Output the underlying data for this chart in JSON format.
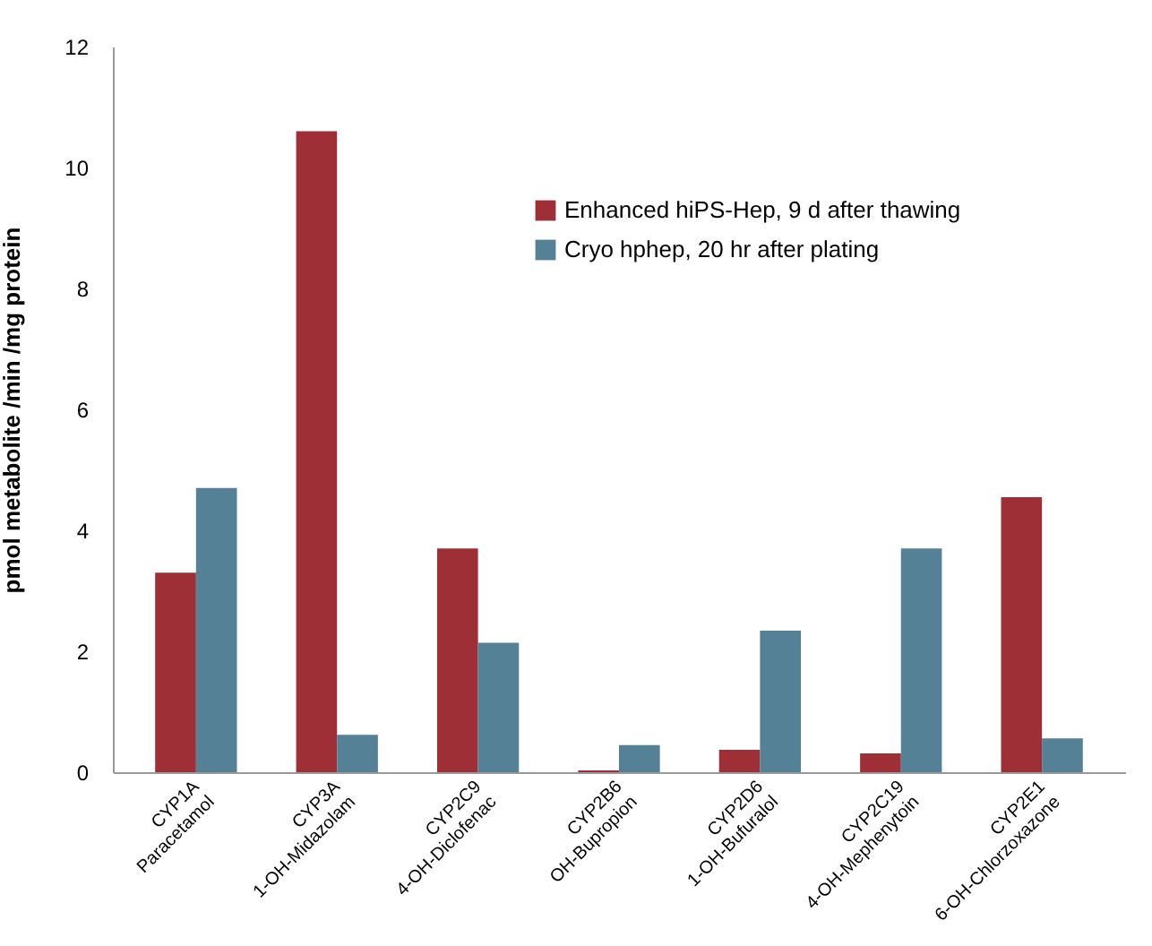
{
  "chart_data": {
    "type": "bar",
    "ylabel": "pmol metabolite /min /mg protein",
    "categories": [
      "CYP1A\nParacetamol",
      "CYP3A\n1-OH-Midazolam",
      "CYP2C9\n4-OH-Diclofenac",
      "CYP2B6\nOH-Bupropion",
      "CYP2D6\n1-OH-Bufuralol",
      "CYP2C19\n4-OH-Mephenytoin",
      "CYP2E1\n6-OH-Chlorzoxazone"
    ],
    "series": [
      {
        "name": "Enhanced hiPS-Hep, 9 d after thawing",
        "color": "#9e2f37",
        "values": [
          3.3,
          10.6,
          3.7,
          0.03,
          0.37,
          0.31,
          4.55
        ]
      },
      {
        "name": "Cryo hphep, 20 hr after plating",
        "color": "#548196",
        "values": [
          4.7,
          0.62,
          2.14,
          0.45,
          2.34,
          3.7,
          0.56
        ]
      }
    ],
    "ylim": [
      0,
      12
    ],
    "yticks": [
      0,
      2,
      4,
      6,
      8,
      10,
      12
    ],
    "grid": false,
    "legend": "top right"
  }
}
